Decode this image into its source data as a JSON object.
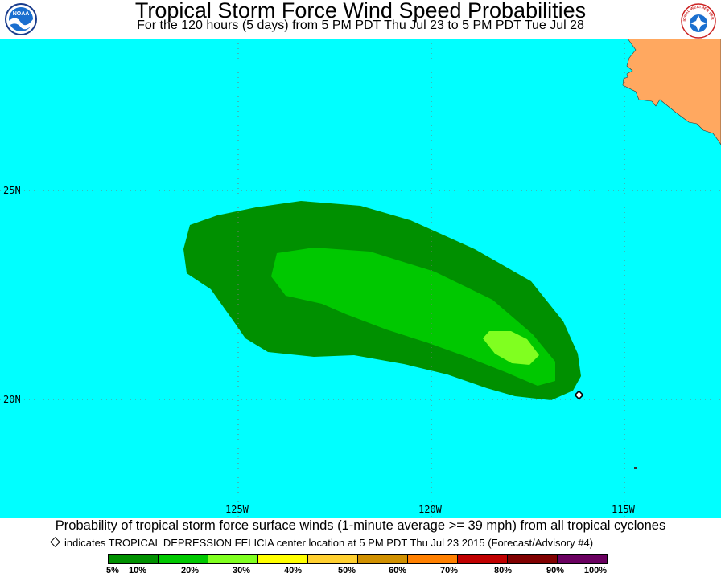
{
  "header": {
    "title": "Tropical Storm Force Wind Speed Probabilities",
    "subtitle": "For the 120 hours (5 days) from 5 PM PDT Thu Jul 23 to 5 PM PDT Tue Jul 28"
  },
  "logos": {
    "left_label": "NOAA",
    "right_label": "NATIONAL WEATHER SERVICE"
  },
  "map": {
    "ocean_color": "#00FFFF",
    "land_color": "#FFA860",
    "lat_labels": [
      "25N",
      "20N"
    ],
    "lon_labels": [
      "125W",
      "120W",
      "115W"
    ],
    "storm_center": {
      "lat": 20.1,
      "lon": 116.2,
      "name": "TROPICAL DEPRESSION FELICIA"
    }
  },
  "footer": {
    "caption": "Probability of tropical storm force surface winds (1-minute average >= 39 mph) from all tropical cyclones",
    "marker_note": "indicates TROPICAL DEPRESSION FELICIA center location at 5 PM PDT Thu Jul 23 2015 (Forecast/Advisory #4)"
  },
  "legend": {
    "labels": [
      "5%",
      "10%",
      "20%",
      "30%",
      "40%",
      "50%",
      "60%",
      "70%",
      "80%",
      "90%",
      "100%"
    ],
    "colors": [
      "#009000",
      "#00C800",
      "#80FF20",
      "#FFFF00",
      "#FFD030",
      "#D09000",
      "#FF8000",
      "#C00000",
      "#800000",
      "#6A0060",
      "#900090"
    ]
  }
}
